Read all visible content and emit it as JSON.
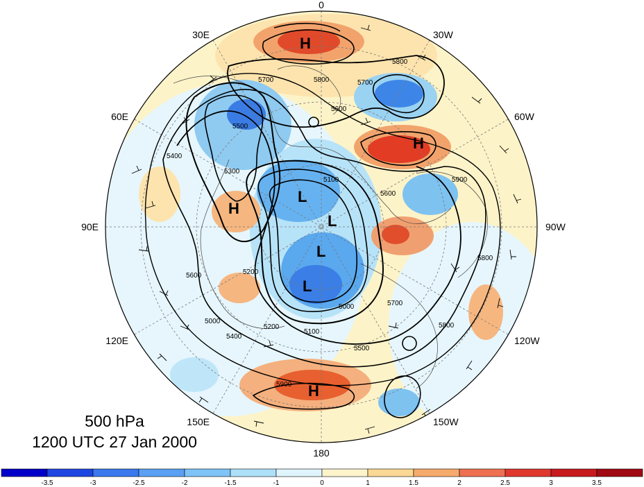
{
  "map": {
    "level_label": "500 hPa",
    "time_label": "1200 UTC 27 Jan 2000",
    "projection": "north-polar-stereographic",
    "longitude_labels": [
      "0",
      "30W",
      "60W",
      "90W",
      "120W",
      "150W",
      "180",
      "150E",
      "120E",
      "90E",
      "60E",
      "30E"
    ],
    "contour_labels": [
      "5800",
      "5700",
      "5800",
      "5700",
      "5600",
      "5500",
      "5400",
      "5300",
      "5200",
      "5100",
      "5000",
      "5900",
      "5800",
      "5700",
      "5600",
      "5500",
      "5600",
      "5400",
      "5200",
      "5100",
      "5000",
      "5800",
      "5900"
    ],
    "highs": [
      "H",
      "H",
      "H",
      "H"
    ],
    "lows": [
      "L",
      "L",
      "L",
      "L"
    ],
    "colors": {
      "strong_positive": "#e0401e",
      "positive": "#f4a06a",
      "weak_positive": "#fde9b4",
      "weak_negative": "#d8f3fb",
      "negative": "#7ec8ee",
      "strong_negative": "#2f78e4",
      "contour": "#000000"
    }
  },
  "colorbar": {
    "ticks": [
      "-3.5",
      "-3",
      "-2.5",
      "-2",
      "-1.5",
      "-1",
      "0",
      "1",
      "1.5",
      "2",
      "2.5",
      "3",
      "3.5"
    ],
    "colors": [
      "#0000c8",
      "#1e46e0",
      "#3a78ee",
      "#5aa0f4",
      "#7ec4f8",
      "#aee0fa",
      "#dff4fc",
      "#fdf4cc",
      "#fbd896",
      "#f6aa6c",
      "#ee7050",
      "#e0382e",
      "#c81a1e",
      "#a00a12"
    ]
  }
}
